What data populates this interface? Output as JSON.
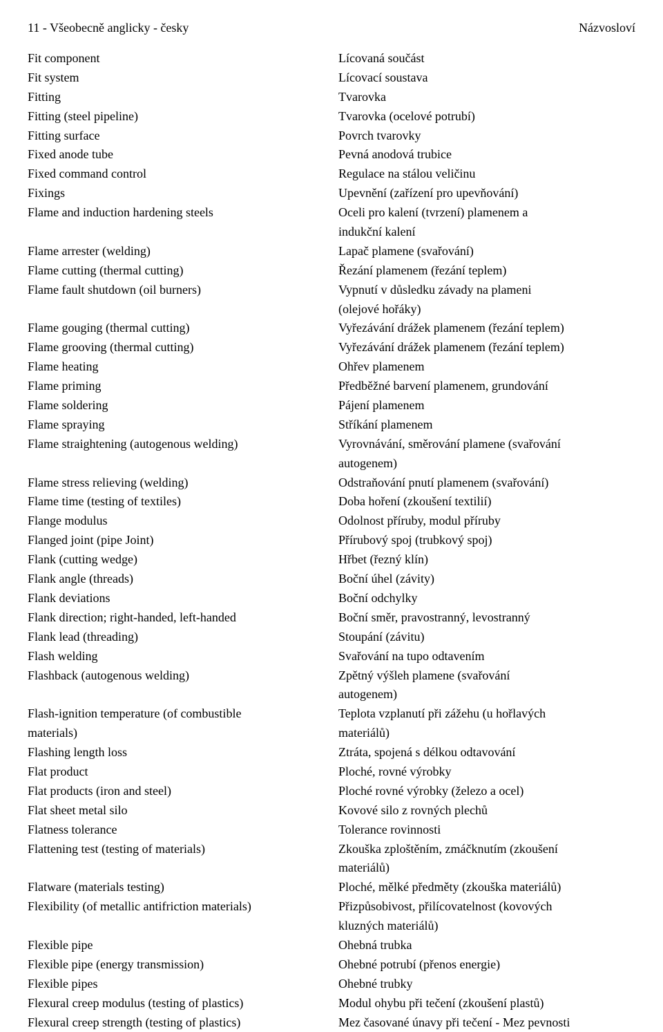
{
  "header": {
    "left": "11 - Všeobecně anglicky - česky",
    "right": "Názvosloví"
  },
  "left_column": [
    "Fit component",
    "Fit system",
    "Fitting",
    "Fitting (steel pipeline)",
    "Fitting surface",
    "Fixed anode tube",
    "Fixed command control",
    "Fixings",
    "Flame and induction hardening steels",
    "",
    "Flame arrester (welding)",
    "Flame cutting (thermal cutting)",
    "Flame fault shutdown (oil burners)",
    "",
    "Flame gouging (thermal cutting)",
    "Flame grooving (thermal cutting)",
    "Flame heating",
    "Flame priming",
    "Flame soldering",
    "Flame spraying",
    "Flame straightening (autogenous welding)",
    "",
    "Flame stress relieving (welding)",
    "Flame time (testing of textiles)",
    "Flange modulus",
    "Flanged joint (pipe Joint)",
    "Flank (cutting wedge)",
    "Flank angle (threads)",
    "Flank deviations",
    "Flank direction; right-handed, left-handed",
    "Flank lead (threading)",
    "Flash welding",
    "Flashback (autogenous welding)",
    "",
    "Flash-ignition temperature (of combustible",
    "materials)",
    "Flashing length loss",
    "Flat product",
    "Flat products (iron and steel)",
    "Flat sheet metal silo",
    "Flatness tolerance",
    "Flattening test (testing of materials)",
    "",
    "Flatware (materials testing)",
    "Flexibility (of metallic antifriction materials)",
    "",
    "Flexible pipe",
    "Flexible pipe (energy transmission)",
    "Flexible pipes",
    "Flexural creep modulus (testing of plastics)",
    "Flexural creep strength (testing of plastics)"
  ],
  "right_column": [
    "Lícovaná součást",
    "Lícovací soustava",
    "Tvarovka",
    "Tvarovka (ocelové potrubí)",
    "Povrch tvarovky",
    "Pevná anodová trubice",
    "Regulace na stálou veličinu",
    "Upevnění (zařízení pro upevňování)",
    "Oceli pro kalení (tvrzení) plamenem a",
    "indukční kalení",
    "Lapač plamene (svařování)",
    "Řezání plamenem (řezání teplem)",
    "Vypnutí v důsledku závady na plameni",
    "(olejové hořáky)",
    "Vyřezávání drážek plamenem (řezání teplem)",
    "Vyřezávání drážek plamenem (řezání teplem)",
    "Ohřev plamenem",
    "Předběžné barvení plamenem, grundování",
    "Pájení plamenem",
    "Stříkání plamenem",
    "Vyrovnávání, směrování plamene (svařování",
    "autogenem)",
    "Odstraňování pnutí plamenem (svařování)",
    "Doba hoření (zkoušení textilií)",
    "Odolnost příruby, modul příruby",
    "Přírubový spoj (trubkový spoj)",
    "Hřbet (řezný klín)",
    "Boční úhel (závity)",
    "Boční odchylky",
    "Boční směr, pravostranný, levostranný",
    "Stoupání (závitu)",
    "Svařování na tupo odtavením",
    "Zpětný výšleh plamene (svařování",
    "autogenem)",
    "Teplota vzplanutí při zážehu (u hořlavých",
    "materiálů)",
    "Ztráta, spojená s délkou odtavování",
    "Ploché, rovné výrobky",
    "Ploché rovné výrobky (železo a ocel)",
    "Kovové silo z rovných plechů",
    "Tolerance rovinnosti",
    "Zkouška zploštěním, zmáčknutím (zkoušení",
    "materiálů)",
    "Ploché, mělké předměty (zkouška materiálů)",
    "Přizpůsobivost, přilícovatelnost (kovových",
    "kluzných materiálů)",
    "Ohebná trubka",
    "Ohebné potrubí (přenos energie)",
    "Ohebné trubky",
    "Modul ohybu při tečení (zkoušení plastů)",
    "Mez časované únavy při tečení - Mez pevnosti"
  ]
}
